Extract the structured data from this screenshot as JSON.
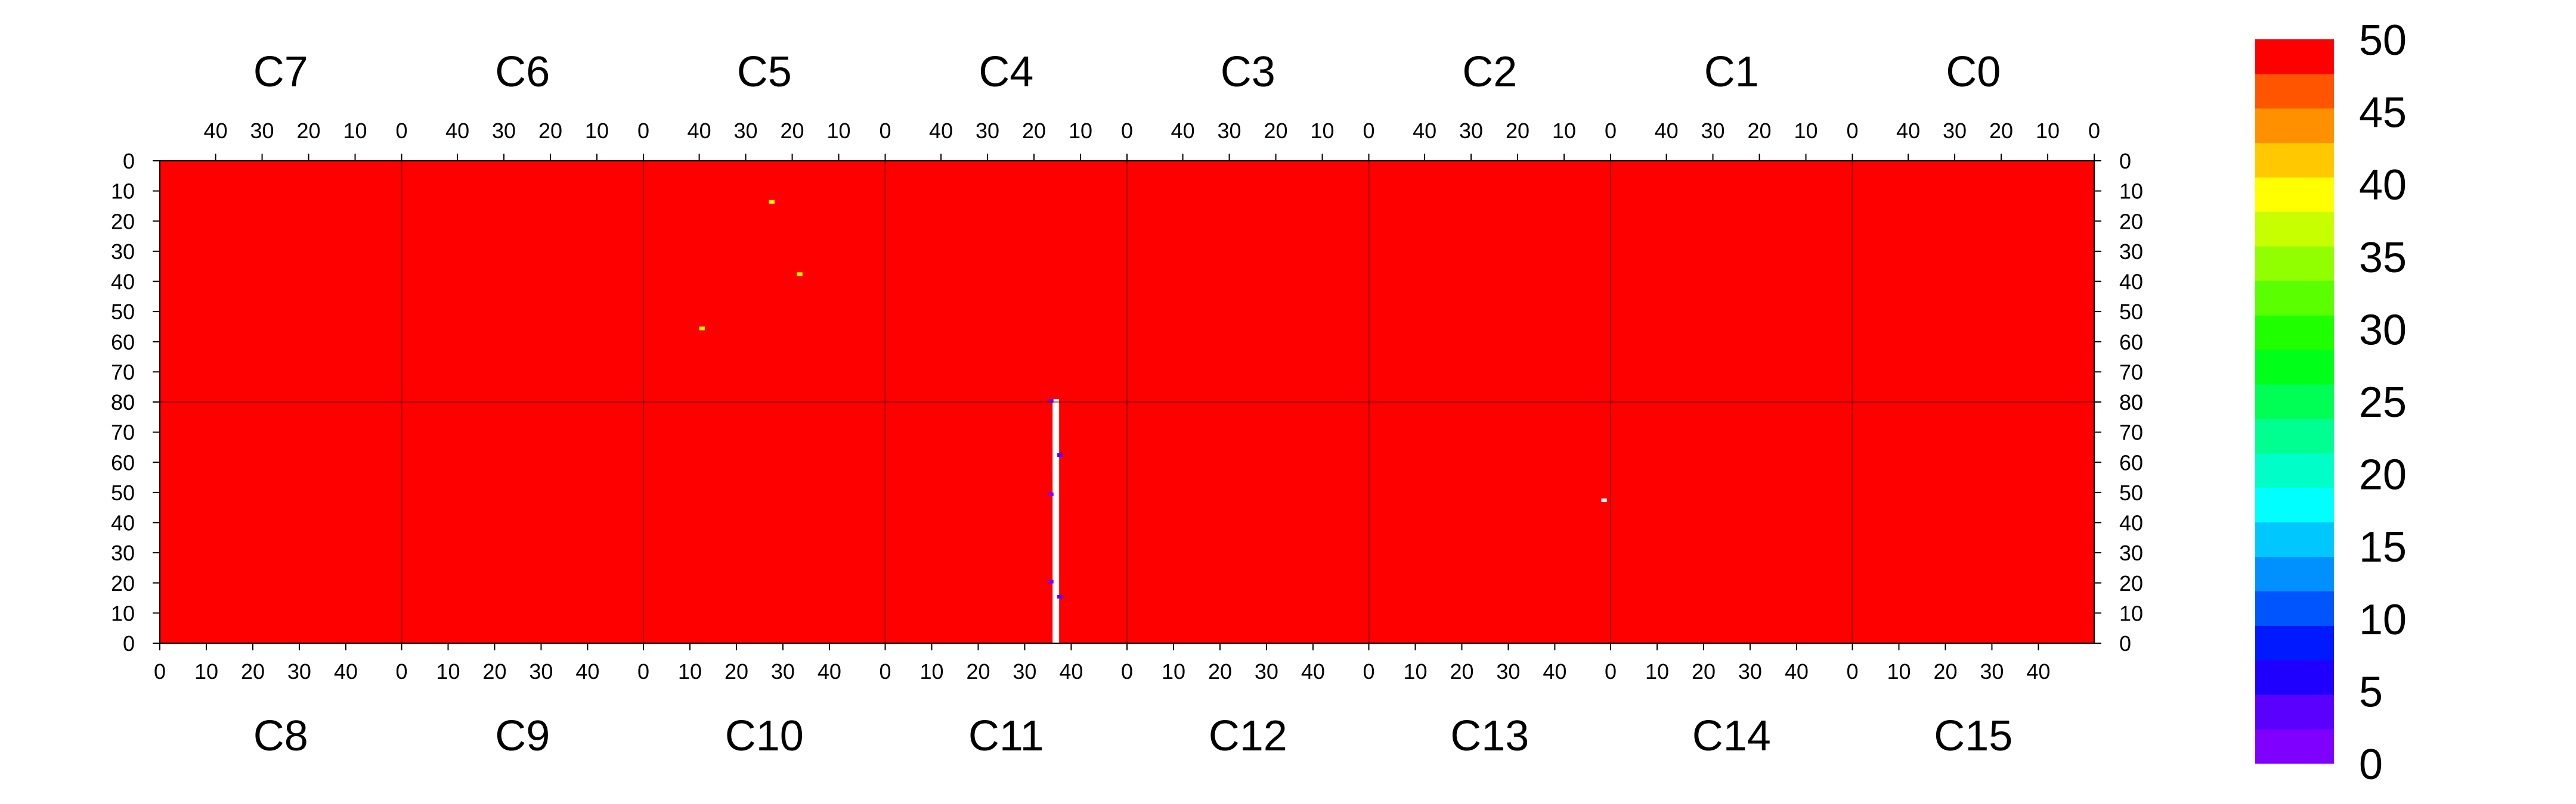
{
  "chart_data": {
    "type": "heatmap",
    "title": "",
    "xlabel": "",
    "ylabel": "",
    "top_row": {
      "chips": [
        "C7",
        "C6",
        "C5",
        "C4",
        "C3",
        "C2",
        "C1",
        "C0"
      ],
      "x_ticks": [
        "40",
        "30",
        "20",
        "10",
        "0"
      ],
      "x_tick_values": [
        40,
        30,
        20,
        10,
        0
      ],
      "y_ticks": [
        "0",
        "10",
        "20",
        "30",
        "40",
        "50",
        "60",
        "70",
        "80"
      ],
      "y_tick_values": [
        0,
        10,
        20,
        30,
        40,
        50,
        60,
        70,
        80
      ],
      "x_direction": "descending left-to-right",
      "y_direction": "descending top-to-bottom"
    },
    "bottom_row": {
      "chips": [
        "C8",
        "C9",
        "C10",
        "C11",
        "C12",
        "C13",
        "C14",
        "C15"
      ],
      "x_ticks": [
        "0",
        "10",
        "20",
        "30",
        "40"
      ],
      "x_tick_values": [
        0,
        10,
        20,
        30,
        40
      ],
      "y_ticks": [
        "80",
        "70",
        "60",
        "50",
        "40",
        "30",
        "20",
        "10",
        "0"
      ],
      "y_tick_values": [
        80,
        70,
        60,
        50,
        40,
        30,
        20,
        10,
        0
      ],
      "x_direction": "ascending left-to-right",
      "y_direction": "ascending bottom-to-top"
    },
    "columns_per_chip": 52,
    "rows_per_chip": 80,
    "dominant_value": 50,
    "colorbar": {
      "min": 0,
      "max": 50,
      "step": 2.5,
      "tick_labels": [
        "50",
        "45",
        "40",
        "35",
        "30",
        "25",
        "20",
        "15",
        "10",
        "5",
        "0"
      ],
      "tick_values": [
        50,
        45,
        40,
        35,
        30,
        25,
        20,
        15,
        10,
        5,
        0
      ],
      "colors": [
        "#7f00ff",
        "#5a00ff",
        "#1f00ff",
        "#0019ff",
        "#0055ff",
        "#0091ff",
        "#00c8ff",
        "#00ffff",
        "#00ffc8",
        "#00ff91",
        "#00ff55",
        "#00ff19",
        "#1fff00",
        "#5aff00",
        "#91ff00",
        "#c8ff00",
        "#ffff00",
        "#ffc800",
        "#ff9100",
        "#ff5500",
        "#ff0000"
      ]
    },
    "anomalies": [
      {
        "chip": "C11",
        "column": 36,
        "rows": [
          0,
          80
        ],
        "value": null,
        "note": "dead column"
      },
      {
        "chip": "C11",
        "column": 35,
        "row": 80,
        "value": 2
      },
      {
        "chip": "C11",
        "column": 35,
        "row": 49,
        "value": 2
      },
      {
        "chip": "C11",
        "column": 35,
        "row": 20,
        "value": 2
      },
      {
        "chip": "C11",
        "column": 37,
        "row": 62,
        "value": 4
      },
      {
        "chip": "C11",
        "column": 37,
        "row": 15,
        "value": 4
      },
      {
        "chip": "C13",
        "column": 50,
        "row": 47,
        "value": null
      },
      {
        "chip": "C5",
        "column": 39,
        "row": 55,
        "value": 40
      },
      {
        "chip": "C5",
        "column": 24,
        "row": 13,
        "value": 41
      },
      {
        "chip": "C5",
        "column": 18,
        "row": 37,
        "value": 42
      }
    ]
  }
}
